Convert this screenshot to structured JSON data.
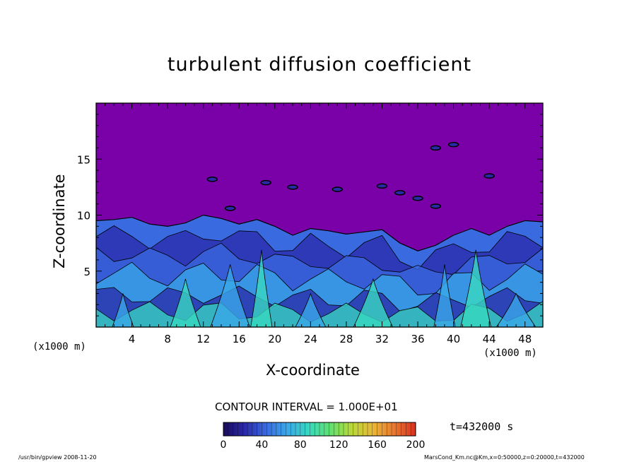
{
  "chart_data": {
    "type": "heatmap",
    "title": "turbulent diffusion coefficient",
    "xlabel": "X-coordinate",
    "ylabel": "Z-coordinate",
    "x_unit": "(x1000 m)",
    "xlim": [
      0,
      50
    ],
    "ylim": [
      0,
      20
    ],
    "x_ticks": [
      4,
      8,
      12,
      16,
      20,
      24,
      28,
      32,
      36,
      40,
      44,
      48
    ],
    "y_ticks": [
      5,
      10,
      15
    ],
    "boundary_layer_top": [
      [
        0,
        9.5
      ],
      [
        2,
        9.6
      ],
      [
        4,
        9.8
      ],
      [
        6,
        9.2
      ],
      [
        8,
        9.0
      ],
      [
        10,
        9.3
      ],
      [
        12,
        10.0
      ],
      [
        14,
        9.7
      ],
      [
        16,
        9.2
      ],
      [
        18,
        9.6
      ],
      [
        20,
        9.0
      ],
      [
        22,
        8.2
      ],
      [
        24,
        8.8
      ],
      [
        26,
        8.6
      ],
      [
        28,
        8.3
      ],
      [
        30,
        8.5
      ],
      [
        32,
        8.7
      ],
      [
        34,
        7.5
      ],
      [
        36,
        6.8
      ],
      [
        38,
        7.3
      ],
      [
        40,
        8.2
      ],
      [
        42,
        8.8
      ],
      [
        44,
        8.2
      ],
      [
        46,
        9.0
      ],
      [
        48,
        9.5
      ],
      [
        50,
        9.4
      ]
    ],
    "colorbar": {
      "min": 0,
      "max": 200,
      "ticks": [
        0,
        40,
        80,
        120,
        160,
        200
      ],
      "contour_interval": "CONTOUR INTERVAL = 1.000E+01",
      "colors": [
        "#1a0a5c",
        "#2a2aa8",
        "#3a6ae0",
        "#3aa8e8",
        "#38d8c0",
        "#60e070",
        "#b8d838",
        "#e8b838",
        "#e87830",
        "#d83020"
      ]
    },
    "background_color": "#7a00a8",
    "time": "t=432000 s"
  },
  "footer": {
    "left": "/usr/bin/gpview   2008-11-20",
    "right": "MarsCond_Km.nc@Km,x=0:50000,z=0:20000,t=432000"
  }
}
